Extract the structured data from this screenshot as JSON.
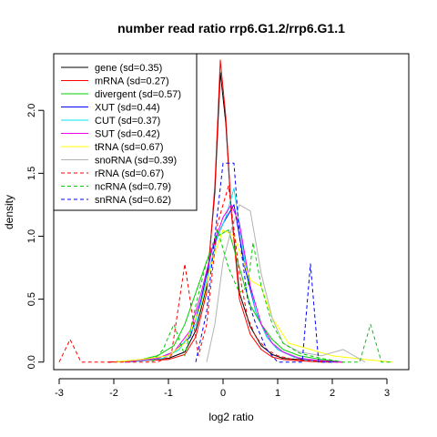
{
  "chart_data": {
    "type": "line",
    "title": "number read ratio rrp6.G1.2/rrp6.G1.1",
    "xlabel": "log2 ratio",
    "ylabel": "density",
    "xlim": [
      -3.1,
      3.4
    ],
    "ylim": [
      -0.06,
      2.45
    ],
    "xticks": [
      -3,
      -2,
      -1,
      0,
      1,
      2,
      3
    ],
    "yticks": [
      0.0,
      0.5,
      1.0,
      1.5,
      2.0
    ],
    "xtick_labels": [
      "-3",
      "-2",
      "-1",
      "0",
      "1",
      "2",
      "3"
    ],
    "ytick_labels": [
      "0.0",
      "0.5",
      "1.0",
      "1.5",
      "2.0"
    ],
    "legend_position": "top-left",
    "series": [
      {
        "name": "gene (sd=0.35)",
        "color": "#000000",
        "dash": false,
        "x": [
          -2.1,
          -1.5,
          -1.0,
          -0.7,
          -0.5,
          -0.3,
          -0.15,
          -0.05,
          0.05,
          0.15,
          0.3,
          0.5,
          0.7,
          0.9,
          1.1,
          1.4,
          1.8,
          2.2
        ],
        "y": [
          0,
          0.01,
          0.03,
          0.08,
          0.25,
          0.6,
          1.35,
          2.3,
          1.9,
          1.2,
          0.55,
          0.28,
          0.13,
          0.06,
          0.03,
          0.02,
          0.01,
          0
        ]
      },
      {
        "name": "mRNA (sd=0.27)",
        "color": "#ff0000",
        "dash": false,
        "x": [
          -2.1,
          -1.5,
          -1.0,
          -0.7,
          -0.5,
          -0.3,
          -0.15,
          -0.05,
          0.05,
          0.15,
          0.3,
          0.5,
          0.7,
          0.9,
          1.1,
          1.4,
          1.8,
          2.2
        ],
        "y": [
          0,
          0.01,
          0.02,
          0.06,
          0.2,
          0.55,
          1.4,
          2.4,
          1.95,
          1.2,
          0.5,
          0.22,
          0.1,
          0.04,
          0.02,
          0.01,
          0,
          0
        ]
      },
      {
        "name": "divergent (sd=0.57)",
        "color": "#00cd00",
        "dash": false,
        "x": [
          -2.0,
          -1.5,
          -1.2,
          -0.9,
          -0.7,
          -0.5,
          -0.3,
          -0.1,
          0.1,
          0.3,
          0.5,
          0.7,
          0.9,
          1.1,
          1.4,
          1.8,
          2.2
        ],
        "y": [
          0,
          0.02,
          0.05,
          0.13,
          0.3,
          0.55,
          0.8,
          1.0,
          1.05,
          0.75,
          0.45,
          0.3,
          0.18,
          0.1,
          0.05,
          0.02,
          0
        ]
      },
      {
        "name": "XUT (sd=0.44)",
        "color": "#0000ff",
        "dash": false,
        "x": [
          -1.8,
          -1.2,
          -0.9,
          -0.6,
          -0.4,
          -0.2,
          0.0,
          0.2,
          0.4,
          0.6,
          0.8,
          1.0,
          1.3,
          1.7,
          2.1
        ],
        "y": [
          0,
          0.03,
          0.08,
          0.2,
          0.5,
          0.9,
          1.1,
          1.25,
          0.75,
          0.4,
          0.2,
          0.1,
          0.04,
          0.01,
          0
        ]
      },
      {
        "name": "CUT (sd=0.37)",
        "color": "#00e5ee",
        "dash": false,
        "x": [
          -1.7,
          -1.1,
          -0.8,
          -0.5,
          -0.3,
          -0.1,
          0.05,
          0.2,
          0.4,
          0.6,
          0.8,
          1.0,
          1.3,
          1.6,
          2.0
        ],
        "y": [
          0,
          0.03,
          0.1,
          0.3,
          0.65,
          1.0,
          1.15,
          1.38,
          0.8,
          0.4,
          0.2,
          0.1,
          0.04,
          0.01,
          0
        ]
      },
      {
        "name": "SUT (sd=0.42)",
        "color": "#ee00ee",
        "dash": false,
        "x": [
          -1.8,
          -1.2,
          -0.9,
          -0.6,
          -0.4,
          -0.2,
          0.0,
          0.15,
          0.3,
          0.5,
          0.7,
          0.9,
          1.1,
          1.4,
          1.8,
          2.2
        ],
        "y": [
          0,
          0.03,
          0.08,
          0.25,
          0.55,
          0.9,
          1.15,
          1.25,
          1.1,
          0.6,
          0.3,
          0.15,
          0.08,
          0.03,
          0.01,
          0
        ]
      },
      {
        "name": "tRNA (sd=0.67)",
        "color": "#ffff00",
        "dash": false,
        "x": [
          -2.0,
          -1.5,
          -1.0,
          -0.7,
          -0.4,
          -0.2,
          0.0,
          0.2,
          0.5,
          0.7,
          0.9,
          1.2,
          1.6,
          2.0,
          2.6,
          3.1
        ],
        "y": [
          0,
          0.02,
          0.05,
          0.15,
          0.45,
          0.8,
          1.05,
          1.0,
          0.65,
          0.6,
          0.35,
          0.15,
          0.1,
          0.05,
          0.02,
          0
        ]
      },
      {
        "name": "snoRNA (sd=0.39)",
        "color": "#b3b3b3",
        "dash": false,
        "x": [
          -0.3,
          -0.15,
          0.0,
          0.15,
          0.3,
          0.5,
          0.7,
          0.9,
          1.1,
          1.4,
          1.8,
          2.2,
          2.6
        ],
        "y": [
          0,
          0.3,
          0.8,
          1.05,
          1.25,
          1.2,
          0.7,
          0.35,
          0.15,
          0.08,
          0.05,
          0.1,
          0
        ]
      },
      {
        "name": "rRNA (sd=0.67)",
        "color": "#ff0000",
        "dash": true,
        "x": [
          -3.0,
          -2.8,
          -2.6,
          -1.2,
          -0.95,
          -0.7,
          -0.45,
          -0.3,
          -0.1,
          0.1,
          0.3,
          0.45,
          0.6,
          0.8,
          1.0,
          1.3,
          1.6,
          2.0
        ],
        "y": [
          0,
          0.18,
          0,
          0,
          0.05,
          0.78,
          0.05,
          0.3,
          1.1,
          1.4,
          0.7,
          0.35,
          0.2,
          0.1,
          0.05,
          0.02,
          0.01,
          0
        ]
      },
      {
        "name": "ncRNA (sd=0.79)",
        "color": "#00cd00",
        "dash": true,
        "x": [
          -1.3,
          -1.1,
          -0.9,
          -0.7,
          -0.5,
          -0.3,
          -0.1,
          0.1,
          0.3,
          0.45,
          0.55,
          0.7,
          0.9,
          1.1,
          1.4,
          1.8,
          2.2,
          2.5,
          2.7,
          2.9,
          3.1
        ],
        "y": [
          0,
          0.1,
          0.3,
          0.05,
          0.45,
          0.8,
          1.05,
          0.75,
          0.55,
          0.6,
          0.95,
          0.6,
          0.3,
          0.15,
          0.07,
          0.03,
          0,
          0,
          0.3,
          0,
          0
        ]
      },
      {
        "name": "snRNA (sd=0.62)",
        "color": "#0000ff",
        "dash": true,
        "x": [
          -0.5,
          -0.3,
          -0.15,
          0.0,
          0.2,
          0.3,
          0.45,
          0.6,
          0.8,
          1.0,
          1.2,
          1.45,
          1.6,
          1.75,
          2.0
        ],
        "y": [
          0,
          0.4,
          1.0,
          1.58,
          1.58,
          1.0,
          0.5,
          0.3,
          0.1,
          0,
          0,
          0,
          0.78,
          0,
          0
        ]
      }
    ]
  }
}
